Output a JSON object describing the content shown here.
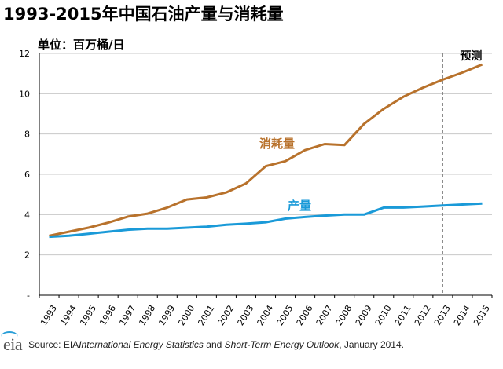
{
  "title": "1993-2015年中国石油产量与消耗量",
  "unit_label": "单位：百万桶/日",
  "forecast_label": "预测",
  "source": {
    "prefix": "Source: EIA ",
    "pub1": "International Energy Statistics",
    "mid": " and ",
    "pub2": "Short-Term Energy Outlook",
    "suffix": ", January 2014."
  },
  "logo_text": "eia",
  "colors": {
    "consumption": "#b8722c",
    "production": "#1a9ad8",
    "axis": "#000000",
    "grid": "#c8c8c8",
    "forecast_line": "#7f7f7f"
  },
  "chart_data": {
    "type": "line",
    "title": "1993-2015年中国石油产量与消耗量",
    "ylabel": "单位：百万桶/日",
    "xlabel": "",
    "ylim": [
      0,
      12
    ],
    "yticks": [
      0,
      2,
      4,
      6,
      8,
      10,
      12
    ],
    "ytick_labels": [
      "-",
      "2",
      "4",
      "6",
      "8",
      "10",
      "12"
    ],
    "x": [
      "1993",
      "1994",
      "1995",
      "1996",
      "1997",
      "1998",
      "1999",
      "2000",
      "2001",
      "2002",
      "2003",
      "2004",
      "2005",
      "2006",
      "2007",
      "2008",
      "2009",
      "2010",
      "2011",
      "2012",
      "2013",
      "2014",
      "2015"
    ],
    "forecast_start": "2013",
    "series": [
      {
        "name": "消耗量",
        "color": "#b8722c",
        "values": [
          2.95,
          3.15,
          3.35,
          3.6,
          3.9,
          4.05,
          4.35,
          4.75,
          4.85,
          5.1,
          5.55,
          6.4,
          6.65,
          7.2,
          7.5,
          7.45,
          8.5,
          9.25,
          9.85,
          10.3,
          10.7,
          11.05,
          11.45
        ]
      },
      {
        "name": "产量",
        "color": "#1a9ad8",
        "values": [
          2.9,
          2.95,
          3.05,
          3.15,
          3.25,
          3.3,
          3.3,
          3.35,
          3.4,
          3.5,
          3.55,
          3.62,
          3.8,
          3.88,
          3.95,
          4.0,
          4.0,
          4.35,
          4.35,
          4.4,
          4.45,
          4.5,
          4.55
        ]
      }
    ]
  }
}
